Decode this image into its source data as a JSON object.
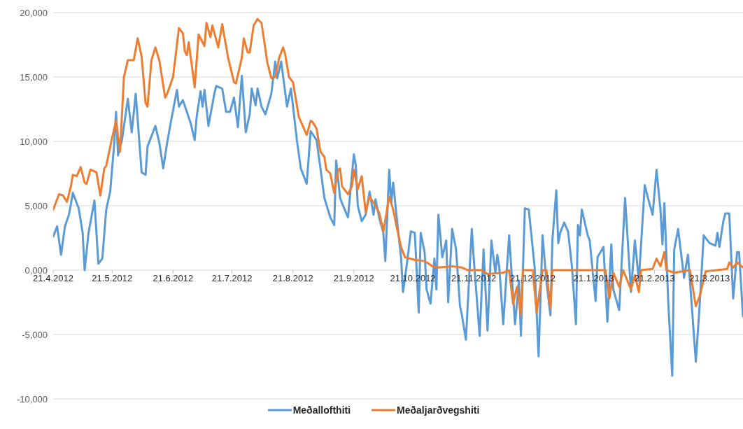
{
  "chart_data": {
    "type": "line",
    "xlim": [
      "2012-04-21",
      "2013-04-07"
    ],
    "xticks": [
      {
        "value": "2012-04-21",
        "label": "21.4.2012"
      },
      {
        "value": "2012-05-21",
        "label": "21.5.2012"
      },
      {
        "value": "2012-06-21",
        "label": "21.6.2012"
      },
      {
        "value": "2012-07-21",
        "label": "21.7.2012"
      },
      {
        "value": "2012-08-21",
        "label": "21.8.2012"
      },
      {
        "value": "2012-09-21",
        "label": "21.9.2012"
      },
      {
        "value": "2012-10-21",
        "label": "21.10.2012"
      },
      {
        "value": "2012-11-21",
        "label": "21.11.2012"
      },
      {
        "value": "2012-12-21",
        "label": "21.12.2012"
      },
      {
        "value": "2013-01-21",
        "label": "21.1.2013"
      },
      {
        "value": "2013-02-21",
        "label": "21.2.2013"
      },
      {
        "value": "2013-03-21",
        "label": "21.3.2013"
      }
    ],
    "ylim": [
      -10000,
      20000
    ],
    "yticks": [
      {
        "value": -10000,
        "label": "-10,000"
      },
      {
        "value": -5000,
        "label": "-5,000"
      },
      {
        "value": 0,
        "label": "0,000"
      },
      {
        "value": 5000,
        "label": "5,000"
      },
      {
        "value": 10000,
        "label": "10,000"
      },
      {
        "value": 15000,
        "label": "15,000"
      },
      {
        "value": 20000,
        "label": "20,000"
      }
    ],
    "grid": "y",
    "legend": "bottom",
    "line_style": "solid",
    "series": [
      {
        "name": "Meðallofthiti",
        "color": "#5b9bd5",
        "x": [
          "2012-04-21",
          "2012-04-23",
          "2012-04-25",
          "2012-04-27",
          "2012-04-29",
          "2012-04-30",
          "2012-05-01",
          "2012-05-04",
          "2012-05-06",
          "2012-05-07",
          "2012-05-09",
          "2012-05-12",
          "2012-05-14",
          "2012-05-16",
          "2012-05-18",
          "2012-05-20",
          "2012-05-22",
          "2012-05-23",
          "2012-05-24",
          "2012-05-26",
          "2012-05-29",
          "2012-05-31",
          "2012-06-02",
          "2012-06-05",
          "2012-06-07",
          "2012-06-08",
          "2012-06-12",
          "2012-06-14",
          "2012-06-16",
          "2012-06-18",
          "2012-06-20",
          "2012-06-23",
          "2012-06-24",
          "2012-06-26",
          "2012-06-28",
          "2012-06-30",
          "2012-07-02",
          "2012-07-03",
          "2012-07-05",
          "2012-07-06",
          "2012-07-07",
          "2012-07-09",
          "2012-07-12",
          "2012-07-13",
          "2012-07-16",
          "2012-07-18",
          "2012-07-20",
          "2012-07-22",
          "2012-07-24",
          "2012-07-26",
          "2012-07-28",
          "2012-07-30",
          "2012-07-31",
          "2012-08-02",
          "2012-08-03",
          "2012-08-05",
          "2012-08-07",
          "2012-08-10",
          "2012-08-12",
          "2012-08-13",
          "2012-08-15",
          "2012-08-18",
          "2012-08-20",
          "2012-08-23",
          "2012-08-25",
          "2012-08-28",
          "2012-08-30",
          "2012-09-02",
          "2012-09-04",
          "2012-09-06",
          "2012-09-09",
          "2012-09-11",
          "2012-09-12",
          "2012-09-14",
          "2012-09-15",
          "2012-09-18",
          "2012-09-21",
          "2012-09-22",
          "2012-09-23",
          "2012-09-25",
          "2012-09-27",
          "2012-09-29",
          "2012-10-01",
          "2012-10-02",
          "2012-10-04",
          "2012-10-06",
          "2012-10-07",
          "2012-10-09",
          "2012-10-10",
          "2012-10-11",
          "2012-10-13",
          "2012-10-15",
          "2012-10-16",
          "2012-10-18",
          "2012-10-20",
          "2012-10-22",
          "2012-10-24",
          "2012-10-25",
          "2012-10-27",
          "2012-10-28",
          "2012-10-30",
          "2012-11-01",
          "2012-11-02",
          "2012-11-03",
          "2012-11-05",
          "2012-11-07",
          "2012-11-08",
          "2012-11-10",
          "2012-11-12",
          "2012-11-14",
          "2012-11-15",
          "2012-11-17",
          "2012-11-20",
          "2012-11-21",
          "2012-11-24",
          "2012-11-26",
          "2012-11-28",
          "2012-11-30",
          "2012-12-02",
          "2012-12-03",
          "2012-12-04",
          "2012-12-06",
          "2012-12-09",
          "2012-12-12",
          "2012-12-14",
          "2012-12-15",
          "2012-12-17",
          "2012-12-19",
          "2012-12-22",
          "2012-12-24",
          "2012-12-26",
          "2012-12-28",
          "2012-12-30",
          "2012-12-31",
          "2013-01-02",
          "2013-01-03",
          "2013-01-04",
          "2013-01-06",
          "2013-01-08",
          "2013-01-10",
          "2013-01-12",
          "2013-01-13",
          "2013-01-14",
          "2013-01-15",
          "2013-01-18",
          "2013-01-19",
          "2013-01-22",
          "2013-01-23",
          "2013-01-26",
          "2013-01-28",
          "2013-01-30",
          "2013-01-31",
          "2013-02-03",
          "2013-02-06",
          "2013-02-09",
          "2013-02-11",
          "2013-02-13",
          "2013-02-16",
          "2013-02-18",
          "2013-02-20",
          "2013-02-22",
          "2013-02-24",
          "2013-02-25",
          "2013-02-26",
          "2013-02-28",
          "2013-03-02",
          "2013-03-03",
          "2013-03-05",
          "2013-03-08",
          "2013-03-10",
          "2013-03-11",
          "2013-03-14",
          "2013-03-16",
          "2013-03-18",
          "2013-03-21",
          "2013-03-24",
          "2013-03-25",
          "2013-03-26",
          "2013-03-28",
          "2013-03-29",
          "2013-03-31",
          "2013-04-02",
          "2013-04-04",
          "2013-04-05",
          "2013-04-07"
        ],
        "values": [
          2600,
          3400,
          1200,
          3400,
          4300,
          5100,
          6000,
          4800,
          2900,
          0,
          2900,
          5400,
          500,
          900,
          4700,
          6100,
          9700,
          12300,
          8900,
          10100,
          13300,
          10700,
          13700,
          7600,
          7400,
          9600,
          11200,
          9900,
          7900,
          9900,
          11600,
          14000,
          12700,
          13200,
          12300,
          11400,
          10100,
          11900,
          13900,
          12700,
          14000,
          11200,
          13700,
          14300,
          14100,
          12300,
          12300,
          13400,
          11100,
          15100,
          10700,
          12100,
          14100,
          12800,
          14100,
          12700,
          12100,
          13700,
          16200,
          14900,
          16200,
          12700,
          14100,
          10100,
          7900,
          6700,
          10800,
          10100,
          7900,
          5600,
          4100,
          3500,
          8500,
          5600,
          5200,
          4100,
          9000,
          8100,
          5000,
          3800,
          4300,
          6100,
          4300,
          5500,
          4000,
          2900,
          700,
          7800,
          5200,
          6800,
          3800,
          1000,
          -1700,
          500,
          3000,
          2900,
          -3300,
          2900,
          1400,
          -1500,
          -2600,
          900,
          -1500,
          4300,
          1000,
          2300,
          -2500,
          3200,
          1600,
          -2800,
          -3500,
          -5400,
          3200,
          900,
          -5100,
          1600,
          -4700,
          2300,
          -200,
          1200,
          200,
          -4200,
          2700,
          -4200,
          -800,
          -5100,
          4800,
          4700,
          200,
          -6700,
          2700,
          -900,
          -3500,
          2300,
          6200,
          2100,
          2900,
          3700,
          3000,
          200,
          -4200,
          3500,
          2700,
          4700,
          2700,
          2300,
          -2400,
          1000,
          1800,
          -4000,
          2000,
          -1500,
          -3100,
          5600,
          -1700,
          2300,
          -800,
          6600,
          5400,
          4300,
          7800,
          4700,
          2000,
          5200,
          -2600,
          -8200,
          1600,
          3200,
          -600,
          1200,
          -800,
          -7100,
          -2600,
          2700,
          2100,
          1900,
          2900,
          1800,
          3800,
          4400,
          4400,
          -2200,
          1400,
          1400,
          -3600
        ]
      },
      {
        "name": "Meðaljarðvegshiti",
        "color": "#ed7d31",
        "x": [
          "2012-04-21",
          "2012-04-24",
          "2012-04-26",
          "2012-04-28",
          "2012-04-30",
          "2012-05-01",
          "2012-05-03",
          "2012-05-05",
          "2012-05-07",
          "2012-05-08",
          "2012-05-10",
          "2012-05-13",
          "2012-05-15",
          "2012-05-17",
          "2012-05-18",
          "2012-05-21",
          "2012-05-23",
          "2012-05-25",
          "2012-05-27",
          "2012-05-29",
          "2012-06-01",
          "2012-06-03",
          "2012-06-05",
          "2012-06-07",
          "2012-06-08",
          "2012-06-10",
          "2012-06-12",
          "2012-06-14",
          "2012-06-17",
          "2012-06-18",
          "2012-06-21",
          "2012-06-24",
          "2012-06-26",
          "2012-06-27",
          "2012-06-28",
          "2012-06-29",
          "2012-07-02",
          "2012-07-04",
          "2012-07-07",
          "2012-07-08",
          "2012-07-10",
          "2012-07-11",
          "2012-07-14",
          "2012-07-16",
          "2012-07-19",
          "2012-07-22",
          "2012-07-23",
          "2012-07-26",
          "2012-07-27",
          "2012-07-29",
          "2012-07-30",
          "2012-08-01",
          "2012-08-03",
          "2012-08-05",
          "2012-08-08",
          "2012-08-10",
          "2012-08-12",
          "2012-08-14",
          "2012-08-16",
          "2012-08-17",
          "2012-08-19",
          "2012-08-21",
          "2012-08-24",
          "2012-08-26",
          "2012-08-28",
          "2012-08-30",
          "2012-08-31",
          "2012-09-02",
          "2012-09-04",
          "2012-09-06",
          "2012-09-07",
          "2012-09-09",
          "2012-09-11",
          "2012-09-13",
          "2012-09-14",
          "2012-09-15",
          "2012-09-18",
          "2012-09-20",
          "2012-09-21",
          "2012-09-23",
          "2012-09-25",
          "2012-09-27",
          "2012-09-29",
          "2012-10-02",
          "2012-10-04",
          "2012-10-06",
          "2012-10-09",
          "2012-10-11",
          "2012-10-13",
          "2012-10-15",
          "2012-10-17",
          "2012-10-22",
          "2012-10-27",
          "2012-10-31",
          "2012-11-03",
          "2012-11-10",
          "2012-11-15",
          "2012-11-18",
          "2012-11-25",
          "2012-11-28",
          "2012-12-06",
          "2012-12-09",
          "2012-12-11",
          "2012-12-13",
          "2012-12-15",
          "2012-12-16",
          "2012-12-21",
          "2012-12-23",
          "2012-12-26",
          "2012-12-28",
          "2012-12-30",
          "2012-12-31",
          "2013-01-27",
          "2013-01-29",
          "2013-01-31",
          "2013-02-03",
          "2013-02-05",
          "2013-02-09",
          "2013-02-11",
          "2013-02-13",
          "2013-02-14",
          "2013-02-20",
          "2013-02-22",
          "2013-02-24",
          "2013-02-26",
          "2013-02-27",
          "2013-03-03",
          "2013-03-11",
          "2013-03-14",
          "2013-03-16",
          "2013-03-19",
          "2013-03-30",
          "2013-03-31",
          "2013-04-02",
          "2013-04-04",
          "2013-04-07"
        ],
        "values": [
          4700,
          5900,
          5800,
          5300,
          6500,
          7400,
          7300,
          8000,
          6800,
          6700,
          7800,
          7600,
          5800,
          7900,
          8100,
          10300,
          11600,
          9200,
          15000,
          16300,
          16300,
          18000,
          16600,
          13000,
          12700,
          16300,
          17300,
          16300,
          13400,
          13700,
          15000,
          18800,
          18400,
          17000,
          16700,
          17700,
          14200,
          18300,
          17400,
          19200,
          18100,
          19000,
          17300,
          19100,
          16500,
          14600,
          14500,
          16500,
          18000,
          16900,
          16900,
          19000,
          19500,
          19200,
          16100,
          14900,
          15000,
          16500,
          17300,
          16800,
          15000,
          14600,
          11900,
          11200,
          10500,
          11600,
          11500,
          11000,
          9200,
          8800,
          7800,
          7500,
          6000,
          7800,
          7900,
          6500,
          5900,
          6500,
          7800,
          6300,
          7300,
          4500,
          5700,
          5000,
          4400,
          3000,
          5700,
          4700,
          3200,
          1800,
          1000,
          800,
          700,
          300,
          200,
          300,
          200,
          0,
          0,
          -300,
          -200,
          0,
          -2600,
          -1300,
          -3500,
          0,
          0,
          -3300,
          0,
          0,
          -3000,
          0,
          0,
          -2200,
          -200,
          -1300,
          0,
          -1500,
          -400,
          -1700,
          0,
          100,
          900,
          300,
          1400,
          0,
          -200,
          0,
          -2800,
          -2000,
          -100,
          100,
          600,
          200,
          600,
          200
        ]
      }
    ]
  }
}
